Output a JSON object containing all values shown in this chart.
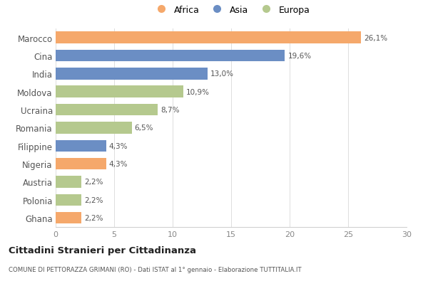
{
  "categories": [
    "Marocco",
    "Cina",
    "India",
    "Moldova",
    "Ucraina",
    "Romania",
    "Filippine",
    "Nigeria",
    "Austria",
    "Polonia",
    "Ghana"
  ],
  "values": [
    26.1,
    19.6,
    13.0,
    10.9,
    8.7,
    6.5,
    4.3,
    4.3,
    2.2,
    2.2,
    2.2
  ],
  "labels": [
    "26,1%",
    "19,6%",
    "13,0%",
    "10,9%",
    "8,7%",
    "6,5%",
    "4,3%",
    "4,3%",
    "2,2%",
    "2,2%",
    "2,2%"
  ],
  "continents": [
    "Africa",
    "Asia",
    "Asia",
    "Europa",
    "Europa",
    "Europa",
    "Asia",
    "Africa",
    "Europa",
    "Europa",
    "Africa"
  ],
  "colors": {
    "Africa": "#F5A86B",
    "Asia": "#6B8EC4",
    "Europa": "#B5C98E"
  },
  "title": "Cittadini Stranieri per Cittadinanza",
  "subtitle": "COMUNE DI PETTORAZZA GRIMANI (RO) - Dati ISTAT al 1° gennaio - Elaborazione TUTTITALIA.IT",
  "xlim": [
    0,
    30
  ],
  "xticks": [
    0,
    5,
    10,
    15,
    20,
    25,
    30
  ],
  "background_color": "#ffffff",
  "bar_height": 0.65,
  "label_fontsize": 7.5,
  "ytick_fontsize": 8.5,
  "xtick_fontsize": 8
}
